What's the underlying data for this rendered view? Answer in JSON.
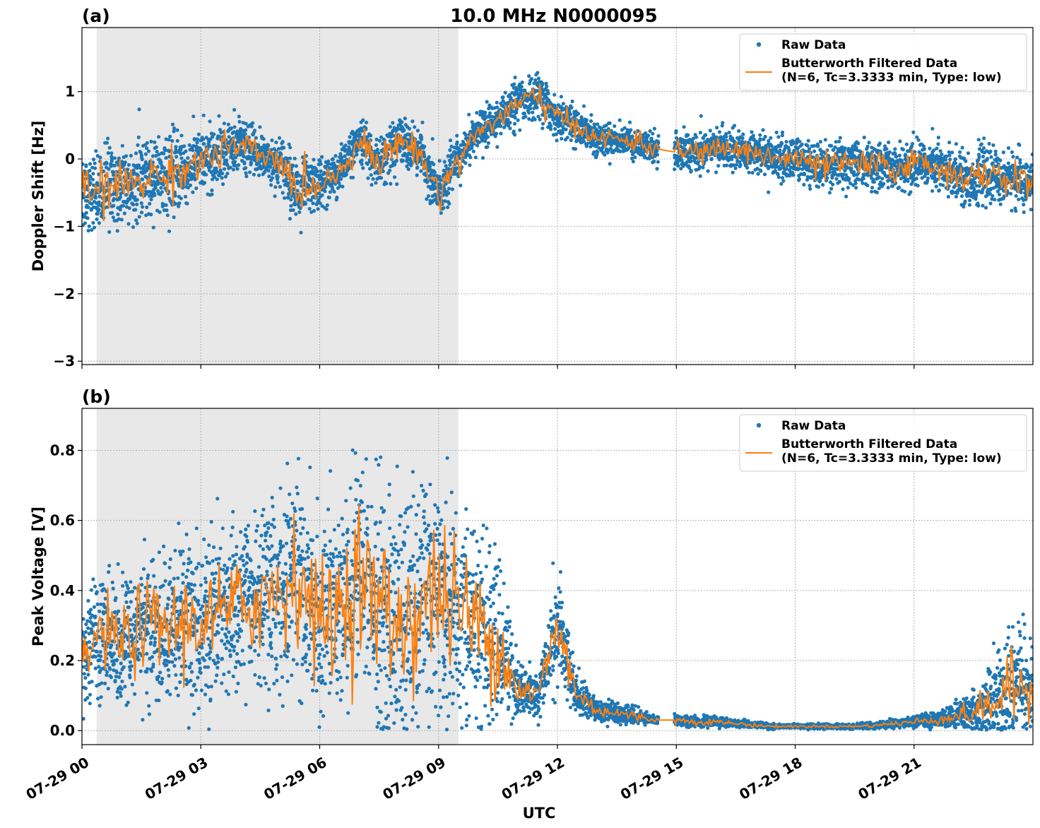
{
  "chart_data": [
    {
      "panel": "(a)",
      "type": "scatter",
      "title": "10.0 MHz N0000095",
      "xlabel": "",
      "ylabel": "Doppler Shift [Hz]",
      "x_tick_labels": [
        "07-29 00",
        "07-29 03",
        "07-29 06",
        "07-29 09",
        "07-29 12",
        "07-29 15",
        "07-29 18",
        "07-29 21"
      ],
      "xlim_hours": [
        0,
        24
      ],
      "ylim": [
        -3.05,
        1.95
      ],
      "y_ticks": [
        -3,
        -2,
        -1,
        0,
        1
      ],
      "y_tick_labels": [
        "−3",
        "−2",
        "−1",
        "0",
        "1"
      ],
      "grid": true,
      "shaded_interval_hours": [
        0.37,
        9.5
      ],
      "shaded_color": "#e8e8e8",
      "legend_placement": "upper right",
      "series": [
        {
          "name": "Raw Data",
          "kind": "points",
          "color": "#1f77b4",
          "x_hours": [
            0,
            0.5,
            1,
            1.5,
            2,
            2.5,
            3,
            3.5,
            4,
            4.5,
            5,
            5.5,
            6,
            6.5,
            7,
            7.5,
            8,
            8.5,
            9,
            9.5,
            10,
            10.5,
            11,
            11.5,
            12,
            12.5,
            13,
            13.5,
            14,
            14.5,
            15,
            15.5,
            16,
            16.5,
            17,
            17.5,
            18,
            18.5,
            19,
            19.5,
            20,
            20.5,
            21,
            21.5,
            22,
            22.5,
            23,
            23.5,
            24
          ],
          "y_center": [
            -0.5,
            -0.45,
            -0.4,
            -0.3,
            -0.25,
            -0.15,
            -0.05,
            0.1,
            0.2,
            0.05,
            -0.05,
            -0.5,
            -0.35,
            -0.2,
            0.3,
            -0.1,
            0.3,
            0.1,
            -0.5,
            0.0,
            0.4,
            0.6,
            0.8,
            0.95,
            0.6,
            0.5,
            0.3,
            0.3,
            0.25,
            0.15,
            0.1,
            0.1,
            0.15,
            0.15,
            0.1,
            0.0,
            0.0,
            -0.1,
            -0.1,
            -0.05,
            -0.1,
            -0.15,
            -0.05,
            -0.1,
            -0.2,
            -0.3,
            -0.25,
            -0.3,
            -0.35
          ],
          "y_spread": [
            0.55,
            0.6,
            0.5,
            0.5,
            0.45,
            0.5,
            0.4,
            0.4,
            0.35,
            0.3,
            0.35,
            0.4,
            0.35,
            0.3,
            0.3,
            0.35,
            0.3,
            0.3,
            0.35,
            0.3,
            0.25,
            0.25,
            0.3,
            0.3,
            0.25,
            0.25,
            0.2,
            0.2,
            0.2,
            0.2,
            0.25,
            0.25,
            0.25,
            0.25,
            0.25,
            0.3,
            0.3,
            0.3,
            0.3,
            0.3,
            0.3,
            0.3,
            0.3,
            0.3,
            0.35,
            0.35,
            0.35,
            0.35,
            0.35
          ],
          "data_gap_hours": [
            14.55,
            14.95
          ]
        },
        {
          "name": "Butterworth Filtered Data\n(N=6, Tc=3.3333 min, Type: low)",
          "kind": "line",
          "color": "#ff7f0e",
          "x_hours": [
            0,
            0.5,
            1,
            1.5,
            2,
            2.5,
            3,
            3.5,
            4,
            4.5,
            5,
            5.5,
            6,
            6.5,
            7,
            7.5,
            8,
            8.5,
            9,
            9.5,
            10,
            10.5,
            11,
            11.5,
            12,
            12.5,
            13,
            13.5,
            14,
            14.5,
            15,
            15.5,
            16,
            16.5,
            17,
            17.5,
            18,
            18.5,
            19,
            19.5,
            20,
            20.5,
            21,
            21.5,
            22,
            22.5,
            23,
            23.5,
            24
          ],
          "y_values": [
            -0.5,
            -0.45,
            -0.4,
            -0.3,
            -0.25,
            -0.15,
            -0.05,
            0.1,
            0.2,
            0.05,
            -0.05,
            -0.5,
            -0.35,
            -0.2,
            0.3,
            -0.1,
            0.3,
            0.1,
            -0.5,
            0.0,
            0.4,
            0.6,
            0.8,
            0.95,
            0.6,
            0.5,
            0.3,
            0.3,
            0.25,
            0.15,
            0.1,
            0.1,
            0.15,
            0.15,
            0.1,
            0.0,
            0.0,
            -0.1,
            -0.1,
            -0.05,
            -0.1,
            -0.15,
            -0.05,
            -0.1,
            -0.2,
            -0.3,
            -0.25,
            -0.3,
            -0.35
          ]
        }
      ]
    },
    {
      "panel": "(b)",
      "type": "scatter",
      "title": "",
      "xlabel": "UTC",
      "ylabel": "Peak Voltage [V]",
      "x_tick_labels": [
        "07-29 00",
        "07-29 03",
        "07-29 06",
        "07-29 09",
        "07-29 12",
        "07-29 15",
        "07-29 18",
        "07-29 21"
      ],
      "xlim_hours": [
        0,
        24
      ],
      "ylim": [
        -0.04,
        0.92
      ],
      "y_ticks": [
        0.0,
        0.2,
        0.4,
        0.6,
        0.8
      ],
      "y_tick_labels": [
        "0.0",
        "0.2",
        "0.4",
        "0.6",
        "0.8"
      ],
      "grid": true,
      "shaded_interval_hours": [
        0.37,
        9.5
      ],
      "shaded_color": "#e8e8e8",
      "legend_placement": "upper right",
      "series": [
        {
          "name": "Raw Data",
          "kind": "points",
          "color": "#1f77b4",
          "x_hours": [
            0,
            0.5,
            1,
            1.5,
            2,
            2.5,
            3,
            3.5,
            4,
            4.5,
            5,
            5.5,
            6,
            6.5,
            7,
            7.5,
            8,
            8.5,
            9,
            9.5,
            10,
            10.5,
            11,
            11.5,
            12,
            12.5,
            13,
            13.5,
            14,
            14.5,
            15,
            15.5,
            16,
            16.5,
            17,
            17.5,
            18,
            18.5,
            19,
            19.5,
            20,
            20.5,
            21,
            21.5,
            22,
            22.5,
            23,
            23.5,
            24
          ],
          "y_center": [
            0.2,
            0.28,
            0.25,
            0.3,
            0.3,
            0.3,
            0.32,
            0.33,
            0.35,
            0.38,
            0.4,
            0.45,
            0.3,
            0.35,
            0.45,
            0.35,
            0.3,
            0.35,
            0.4,
            0.35,
            0.3,
            0.25,
            0.12,
            0.1,
            0.3,
            0.1,
            0.06,
            0.05,
            0.04,
            0.03,
            0.03,
            0.025,
            0.025,
            0.02,
            0.015,
            0.012,
            0.012,
            0.012,
            0.012,
            0.012,
            0.015,
            0.02,
            0.025,
            0.03,
            0.04,
            0.05,
            0.08,
            0.12,
            0.12
          ],
          "y_spread": [
            0.12,
            0.15,
            0.15,
            0.18,
            0.18,
            0.2,
            0.2,
            0.2,
            0.22,
            0.22,
            0.25,
            0.25,
            0.25,
            0.28,
            0.3,
            0.3,
            0.3,
            0.3,
            0.3,
            0.28,
            0.25,
            0.2,
            0.08,
            0.05,
            0.15,
            0.06,
            0.03,
            0.025,
            0.02,
            0.01,
            0.015,
            0.012,
            0.012,
            0.01,
            0.008,
            0.006,
            0.006,
            0.006,
            0.006,
            0.006,
            0.008,
            0.01,
            0.015,
            0.02,
            0.03,
            0.05,
            0.1,
            0.15,
            0.12
          ],
          "data_gap_hours": [
            14.55,
            14.95
          ]
        },
        {
          "name": "Butterworth Filtered Data\n(N=6, Tc=3.3333 min, Type: low)",
          "kind": "line",
          "color": "#ff7f0e",
          "x_hours": [
            0,
            0.5,
            1,
            1.5,
            2,
            2.5,
            3,
            3.5,
            4,
            4.5,
            5,
            5.5,
            6,
            6.5,
            7,
            7.5,
            8,
            8.5,
            9,
            9.5,
            10,
            10.5,
            11,
            11.5,
            12,
            12.5,
            13,
            13.5,
            14,
            14.5,
            15,
            15.5,
            16,
            16.5,
            17,
            17.5,
            18,
            18.5,
            19,
            19.5,
            20,
            20.5,
            21,
            21.5,
            22,
            22.5,
            23,
            23.5,
            24
          ],
          "y_values": [
            0.2,
            0.28,
            0.25,
            0.3,
            0.3,
            0.3,
            0.32,
            0.33,
            0.35,
            0.38,
            0.4,
            0.45,
            0.3,
            0.35,
            0.45,
            0.35,
            0.3,
            0.35,
            0.4,
            0.35,
            0.3,
            0.25,
            0.12,
            0.1,
            0.3,
            0.1,
            0.06,
            0.05,
            0.04,
            0.03,
            0.03,
            0.025,
            0.025,
            0.02,
            0.015,
            0.012,
            0.012,
            0.012,
            0.012,
            0.012,
            0.015,
            0.02,
            0.025,
            0.03,
            0.04,
            0.05,
            0.08,
            0.12,
            0.12
          ]
        }
      ]
    }
  ]
}
